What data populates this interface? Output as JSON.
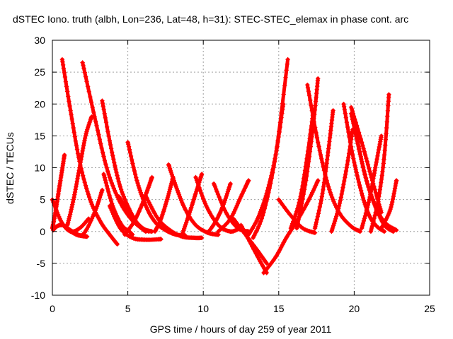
{
  "chart_data": {
    "type": "scatter",
    "title": "dSTEC Iono. truth (albh, Lon=236, Lat=48, h=31): STEC-STEC_elemax in phase cont. arc",
    "xlabel": "GPS time / hours of day 259 of year 2011",
    "ylabel": "dSTEC  / TECUs",
    "xlim": [
      0,
      25
    ],
    "ylim": [
      -10,
      30
    ],
    "xticks": [
      "0",
      "5",
      "10",
      "15",
      "20",
      "25"
    ],
    "yticks": [
      "-10",
      "-5",
      "0",
      "5",
      "10",
      "15",
      "20",
      "25",
      "30"
    ],
    "grid": true,
    "marker": "+",
    "series_color": "#ff0000",
    "series": [
      {
        "x": [
          0.0,
          0.6,
          1.2,
          1.8,
          2.4
        ],
        "y": [
          5.0,
          1.5,
          0.0,
          0.5,
          2.0
        ]
      },
      {
        "x": [
          0.05,
          0.3,
          0.7,
          1.2,
          1.8,
          2.3
        ],
        "y": [
          0.2,
          0.8,
          1.0,
          0.2,
          -0.6,
          -0.8
        ]
      },
      {
        "x": [
          0.0,
          0.2,
          0.4,
          0.6,
          0.8
        ],
        "y": [
          0.5,
          3.0,
          6.0,
          9.0,
          12.0
        ]
      },
      {
        "x": [
          0.65,
          1.2,
          1.8,
          2.5,
          3.2,
          3.8,
          4.3
        ],
        "y": [
          27.0,
          19.0,
          11.0,
          5.0,
          1.5,
          -0.5,
          -2.0
        ]
      },
      {
        "x": [
          1.0,
          1.4,
          1.8,
          2.2,
          2.6
        ],
        "y": [
          1.0,
          5.0,
          10.0,
          15.0,
          18.0
        ]
      },
      {
        "x": [
          2.0,
          2.8,
          3.6,
          4.4,
          5.2,
          5.9,
          6.2
        ],
        "y": [
          26.5,
          18.0,
          10.0,
          5.0,
          2.0,
          0.5,
          0.0
        ]
      },
      {
        "x": [
          1.2,
          2.0,
          2.8,
          3.3
        ],
        "y": [
          0.0,
          -0.5,
          3.0,
          6.5
        ]
      },
      {
        "x": [
          3.3,
          3.9,
          4.5,
          5.2,
          5.8,
          6.4
        ],
        "y": [
          20.5,
          13.0,
          7.0,
          3.0,
          0.8,
          0.0
        ]
      },
      {
        "x": [
          3.4,
          4.0,
          4.6,
          5.1,
          5.3
        ],
        "y": [
          9.0,
          4.0,
          1.0,
          0.0,
          -0.5
        ]
      },
      {
        "x": [
          3.8,
          4.5,
          5.3,
          6.2,
          7.2
        ],
        "y": [
          4.0,
          0.5,
          -1.0,
          -1.3,
          -1.2
        ]
      },
      {
        "x": [
          4.4,
          5.2,
          6.0,
          6.6
        ],
        "y": [
          5.5,
          2.5,
          0.5,
          0.0
        ]
      },
      {
        "x": [
          4.8,
          5.4,
          5.9,
          6.3,
          6.6
        ],
        "y": [
          -0.5,
          1.5,
          4.0,
          6.5,
          8.5
        ]
      },
      {
        "x": [
          5.0,
          5.6,
          6.2,
          6.8,
          7.5,
          8.2,
          8.8
        ],
        "y": [
          14.0,
          8.0,
          4.0,
          1.5,
          0.2,
          -0.5,
          -0.6
        ]
      },
      {
        "x": [
          6.2,
          7.0,
          7.8,
          8.6,
          9.4,
          9.9
        ],
        "y": [
          5.5,
          2.0,
          0.2,
          -0.8,
          -1.0,
          -1.0
        ]
      },
      {
        "x": [
          6.8,
          7.2,
          7.6,
          8.0
        ],
        "y": [
          0.0,
          2.0,
          5.0,
          8.5
        ]
      },
      {
        "x": [
          7.7,
          8.2,
          8.8,
          9.5,
          10.3,
          11.0
        ],
        "y": [
          10.5,
          7.0,
          3.5,
          1.0,
          -0.2,
          -0.5
        ]
      },
      {
        "x": [
          8.6,
          9.1,
          9.5,
          9.9
        ],
        "y": [
          -0.5,
          3.0,
          6.0,
          9.0
        ]
      },
      {
        "x": [
          9.5,
          10.2,
          11.0,
          11.8,
          12.4
        ],
        "y": [
          8.5,
          4.0,
          1.0,
          0.0,
          0.5
        ]
      },
      {
        "x": [
          10.3,
          10.8,
          11.3,
          11.8
        ],
        "y": [
          -0.2,
          1.5,
          4.0,
          7.5
        ]
      },
      {
        "x": [
          10.7,
          11.5,
          12.3,
          13.0
        ],
        "y": [
          7.5,
          3.0,
          0.5,
          0.0
        ]
      },
      {
        "x": [
          11.0,
          11.8,
          12.5,
          13.0
        ],
        "y": [
          0.0,
          2.0,
          5.5,
          8.0
        ]
      },
      {
        "x": [
          12.0,
          12.8,
          13.6,
          14.2
        ],
        "y": [
          2.0,
          -0.5,
          -3.0,
          -5.0
        ]
      },
      {
        "x": [
          12.5,
          13.5,
          14.2
        ],
        "y": [
          1.0,
          -3.5,
          -6.5
        ]
      },
      {
        "x": [
          13.0,
          13.6,
          14.2,
          14.8,
          15.3
        ],
        "y": [
          -0.5,
          2.0,
          6.0,
          12.0,
          20.0
        ]
      },
      {
        "x": [
          13.3,
          14.0,
          14.8,
          15.6
        ],
        "y": [
          -1.0,
          3.0,
          12.0,
          27.0
        ]
      },
      {
        "x": [
          14.0,
          14.8,
          15.5,
          16.3,
          17.0,
          17.6
        ],
        "y": [
          -6.5,
          -4.0,
          -1.0,
          2.0,
          5.0,
          8.0
        ]
      },
      {
        "x": [
          15.0,
          15.8,
          16.6,
          17.4
        ],
        "y": [
          5.0,
          2.5,
          0.5,
          -0.2
        ]
      },
      {
        "x": [
          15.8,
          16.4,
          16.9,
          17.3
        ],
        "y": [
          0.5,
          5.0,
          12.0,
          19.0
        ]
      },
      {
        "x": [
          16.2,
          16.8,
          17.3,
          17.6
        ],
        "y": [
          0.5,
          8.0,
          17.0,
          24.0
        ]
      },
      {
        "x": [
          16.9,
          17.6,
          18.3,
          19.0,
          19.8,
          20.4
        ],
        "y": [
          23.0,
          14.0,
          7.0,
          3.0,
          0.8,
          0.0
        ]
      },
      {
        "x": [
          17.4,
          17.9,
          18.3,
          18.6
        ],
        "y": [
          0.5,
          6.0,
          13.0,
          19.0
        ]
      },
      {
        "x": [
          18.5,
          19.0,
          19.5,
          19.9
        ],
        "y": [
          0.0,
          4.0,
          10.0,
          16.0
        ]
      },
      {
        "x": [
          19.3,
          19.9,
          20.5,
          21.0,
          21.5,
          22.0
        ],
        "y": [
          20.0,
          12.0,
          6.0,
          2.5,
          0.8,
          0.0
        ]
      },
      {
        "x": [
          19.8,
          20.6,
          21.3,
          22.0,
          22.8
        ],
        "y": [
          18.5,
          10.0,
          4.5,
          1.5,
          0.2
        ]
      },
      {
        "x": [
          20.0,
          20.7,
          21.4,
          22.0,
          22.6
        ],
        "y": [
          17.0,
          9.0,
          4.0,
          1.0,
          0.0
        ]
      },
      {
        "x": [
          20.5,
          21.0,
          21.4,
          21.8
        ],
        "y": [
          0.5,
          5.0,
          10.0,
          15.0
        ]
      },
      {
        "x": [
          21.1,
          21.6,
          22.0,
          22.3
        ],
        "y": [
          0.0,
          5.0,
          12.0,
          21.5
        ]
      },
      {
        "x": [
          21.8,
          22.4,
          22.8
        ],
        "y": [
          0.5,
          3.5,
          8.0
        ]
      },
      {
        "x": [
          19.8,
          20.5,
          21.2,
          21.8
        ],
        "y": [
          19.5,
          14.0,
          8.0,
          3.0
        ]
      }
    ]
  }
}
